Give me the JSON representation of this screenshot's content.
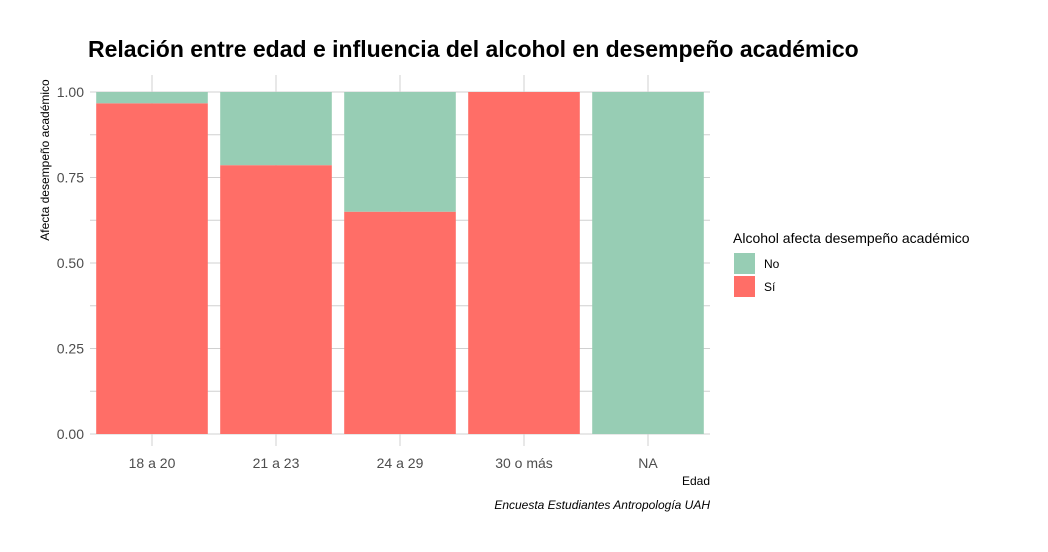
{
  "chart_data": {
    "type": "bar",
    "stacked": true,
    "normalized": true,
    "title": "Relación entre edad e influencia del alcohol en desempeño académico",
    "xlabel": "Edad",
    "ylabel": "Afecta desempeño académico",
    "caption": "Encuesta Estudiantes Antropología UAH",
    "categories": [
      "18 a 20",
      "21 a 23",
      "24 a 29",
      "30 o más",
      "NA"
    ],
    "y_ticks": [
      "0.00",
      "0.25",
      "0.50",
      "0.75",
      "1.00"
    ],
    "y_tick_values": [
      0,
      0.25,
      0.5,
      0.75,
      1
    ],
    "ylim": [
      0,
      1
    ],
    "grid": true,
    "legend": {
      "title": "Alcohol afecta desempeño académico",
      "position": "right"
    },
    "series": [
      {
        "name": "Sí",
        "color": "#ff6e67",
        "values": [
          0.967,
          0.786,
          0.65,
          1.0,
          0.0
        ]
      },
      {
        "name": "No",
        "color": "#97cdb4",
        "values": [
          0.033,
          0.214,
          0.35,
          0.0,
          1.0
        ]
      }
    ],
    "legend_order": [
      "No",
      "Sí"
    ]
  }
}
